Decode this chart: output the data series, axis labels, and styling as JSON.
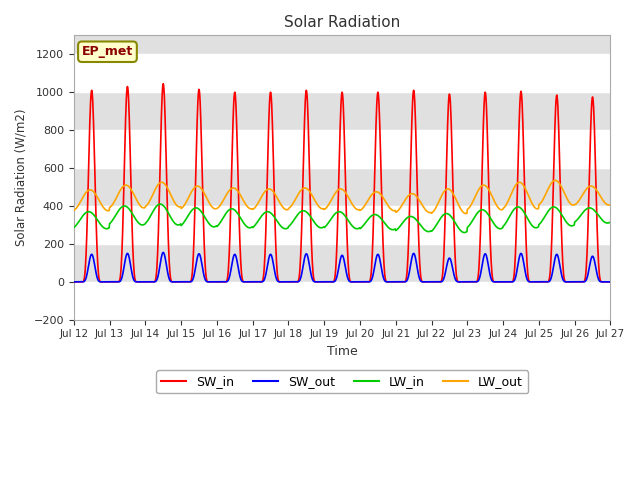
{
  "title": "Solar Radiation",
  "ylabel": "Solar Radiation (W/m2)",
  "xlabel": "Time",
  "ylim": [
    -200,
    1300
  ],
  "yticks": [
    -200,
    0,
    200,
    400,
    600,
    800,
    1000,
    1200
  ],
  "n_days": 15,
  "colors": {
    "SW_in": "#FF0000",
    "SW_out": "#0000FF",
    "LW_in": "#00CC00",
    "LW_out": "#FFA500"
  },
  "annotation_text": "EP_met",
  "plot_bg": "#FFFFFF",
  "fig_bg": "#FFFFFF",
  "line_width": 1.2,
  "x_tick_labels": [
    "Jul 12",
    "Jul 13",
    "Jul 14",
    "Jul 15",
    "Jul 16",
    "Jul 17",
    "Jul 18",
    "Jul 19",
    "Jul 20",
    "Jul 21",
    "Jul 22",
    "Jul 23",
    "Jul 24",
    "Jul 25",
    "Jul 26",
    "Jul 27"
  ],
  "grid_color": "#D8D8D8",
  "SW_peaks": [
    1010,
    1030,
    1045,
    1015,
    1000,
    1000,
    1010,
    1000,
    1000,
    1010,
    990,
    1000,
    1005,
    985,
    975
  ],
  "SW_out_peaks": [
    145,
    150,
    155,
    148,
    145,
    145,
    148,
    140,
    145,
    150,
    125,
    148,
    150,
    145,
    135
  ],
  "LW_in_bases": [
    325,
    350,
    355,
    340,
    335,
    325,
    330,
    325,
    315,
    305,
    310,
    330,
    340,
    345,
    350
  ],
  "LW_in_amps": [
    45,
    50,
    55,
    50,
    50,
    45,
    45,
    45,
    40,
    40,
    50,
    50,
    55,
    50,
    40
  ],
  "LW_out_bases": [
    430,
    450,
    460,
    445,
    440,
    435,
    440,
    435,
    425,
    415,
    425,
    445,
    455,
    470,
    455
  ],
  "LW_out_amps": [
    55,
    60,
    65,
    60,
    55,
    55,
    55,
    55,
    50,
    50,
    65,
    65,
    70,
    65,
    50
  ],
  "hband_colors": [
    "#FFFFFF",
    "#E0E0E0"
  ],
  "hband_edges": [
    -200,
    0,
    200,
    400,
    600,
    800,
    1000,
    1200,
    1300
  ]
}
